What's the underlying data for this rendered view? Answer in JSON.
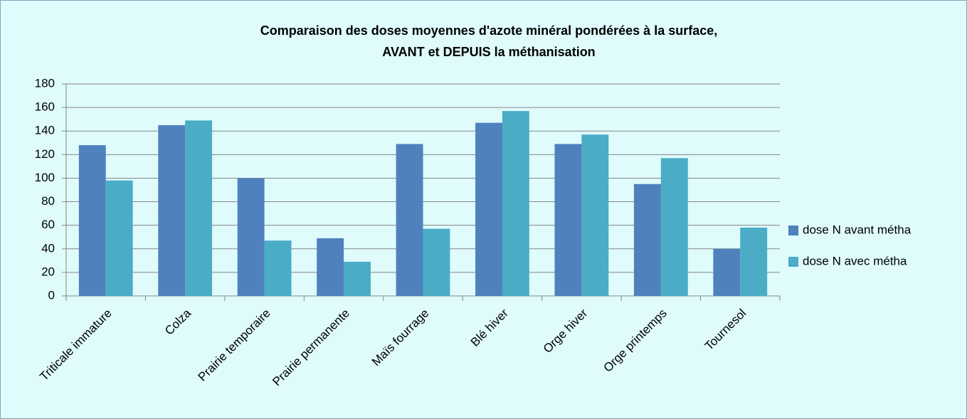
{
  "chart_data": {
    "type": "bar",
    "title": [
      "Comparaison des doses moyennes d'azote minéral pondérées à la surface,",
      "AVANT et DEPUIS la méthanisation"
    ],
    "categories": [
      "Triticale immature",
      "Colza",
      "Prairie temporaire",
      "Prairie permanente",
      "Maïs fourrage",
      "Blé hiver",
      "Orge hiver",
      "Orge printemps",
      "Tournesol"
    ],
    "series": [
      {
        "name": "dose N avant métha",
        "color": "#4f81bd",
        "values": [
          128,
          145,
          100,
          49,
          129,
          147,
          129,
          95,
          40
        ]
      },
      {
        "name": "dose N avec métha",
        "color": "#4bacc6",
        "values": [
          98,
          149,
          47,
          29,
          57,
          157,
          137,
          117,
          58
        ]
      }
    ],
    "ylim": [
      0,
      180
    ],
    "yticks": [
      0,
      20,
      40,
      60,
      80,
      100,
      120,
      140,
      160,
      180
    ],
    "grid": true,
    "legend": "right"
  }
}
